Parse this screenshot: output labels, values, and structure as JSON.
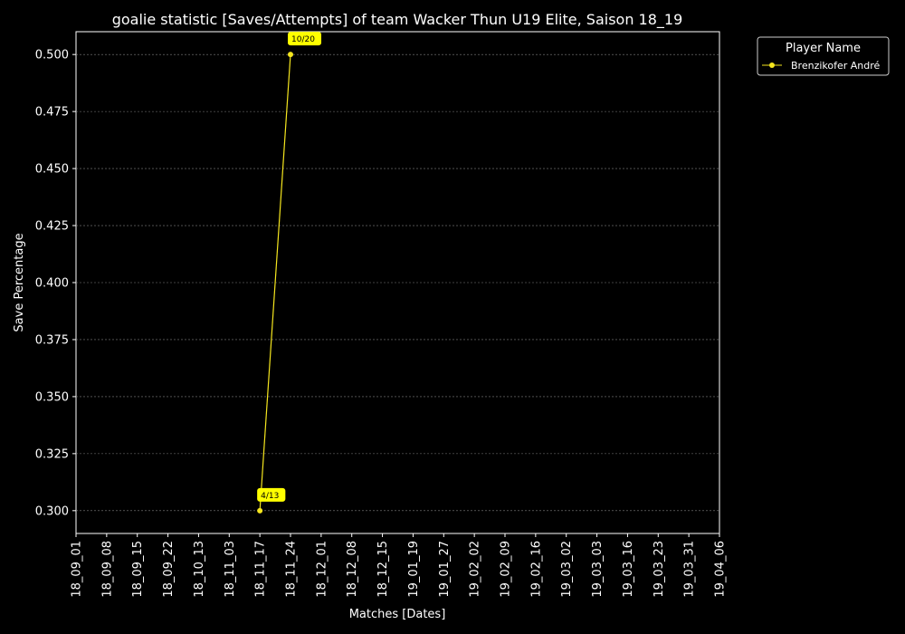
{
  "chart_data": {
    "type": "line",
    "title": "goalie statistic [Saves/Attempts] of team Wacker Thun U19 Elite, Saison 18_19",
    "xlabel": "Matches [Dates]",
    "ylabel": "Save Percentage",
    "x_ticks": [
      "18_09_01",
      "18_09_08",
      "18_09_15",
      "18_09_22",
      "18_10_13",
      "18_11_03",
      "18_11_17",
      "18_11_24",
      "18_12_01",
      "18_12_08",
      "18_12_15",
      "19_01_19",
      "19_01_27",
      "19_02_02",
      "19_02_09",
      "19_02_16",
      "19_03_02",
      "19_03_03",
      "19_03_16",
      "19_03_23",
      "19_03_31",
      "19_04_06"
    ],
    "y_ticks": [
      "0.300",
      "0.325",
      "0.350",
      "0.375",
      "0.400",
      "0.425",
      "0.450",
      "0.475",
      "0.500"
    ],
    "ylim": [
      0.29,
      0.51
    ],
    "grid": true,
    "legend": {
      "title": "Player Name",
      "placement": "outside-top-right"
    },
    "series": [
      {
        "name": "Brenzikofer André",
        "color": "#f5e61e",
        "points": [
          {
            "x": "18_11_17",
            "y": 0.3,
            "label": "4/13"
          },
          {
            "x": "18_11_24",
            "y": 0.5,
            "label": "10/20"
          }
        ]
      }
    ]
  }
}
